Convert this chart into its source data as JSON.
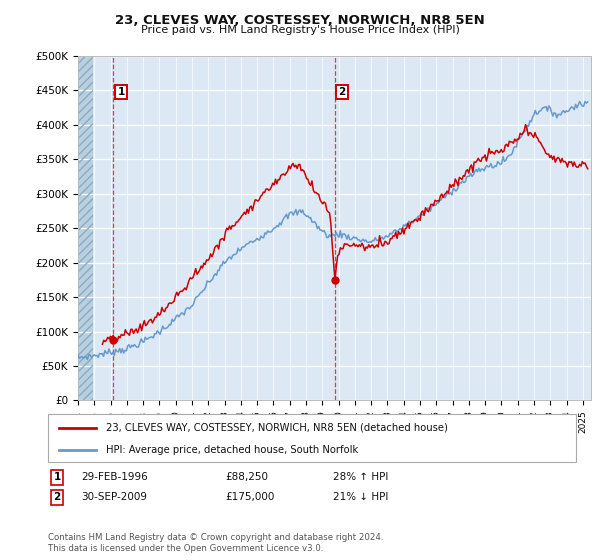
{
  "title": "23, CLEVES WAY, COSTESSEY, NORWICH, NR8 5EN",
  "subtitle": "Price paid vs. HM Land Registry's House Price Index (HPI)",
  "ylim": [
    0,
    500000
  ],
  "xlim_start": 1994.0,
  "xlim_end": 2025.5,
  "sale1_date": 1996.17,
  "sale1_price": 88250,
  "sale2_date": 2009.75,
  "sale2_price": 175000,
  "legend_line1": "23, CLEVES WAY, COSTESSEY, NORWICH, NR8 5EN (detached house)",
  "legend_line2": "HPI: Average price, detached house, South Norfolk",
  "footer": "Contains HM Land Registry data © Crown copyright and database right 2024.\nThis data is licensed under the Open Government Licence v3.0.",
  "sale_color": "#cc0000",
  "hpi_color": "#6699cc",
  "background_color": "#dce9f5",
  "fig_bg": "#ffffff"
}
